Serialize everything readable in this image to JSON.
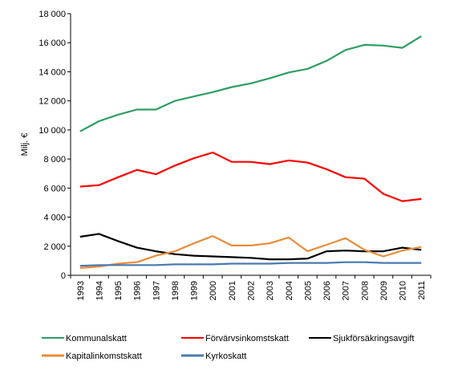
{
  "chart_data": {
    "type": "line",
    "ylabel": "Milj. €",
    "ylim": [
      0,
      18000
    ],
    "yticks": [
      0,
      2000,
      4000,
      6000,
      8000,
      10000,
      12000,
      14000,
      16000,
      18000
    ],
    "ytick_labels": [
      "0",
      "2 000",
      "4 000",
      "6 000",
      "8 000",
      "10 000",
      "12 000",
      "14 000",
      "16 000",
      "18 000"
    ],
    "categories": [
      "1993",
      "1994",
      "1995",
      "1996",
      "1997",
      "1998",
      "1999",
      "2000",
      "2001",
      "2002",
      "2003",
      "2004",
      "2005",
      "2006",
      "2007",
      "2008",
      "2009",
      "2010",
      "2011"
    ],
    "grid": false,
    "legend_position": "bottom",
    "series": [
      {
        "name": "Kommunalskatt",
        "color": "#2e9e62",
        "values": [
          9900,
          10600,
          11050,
          11400,
          11400,
          12000,
          12300,
          12600,
          12950,
          13200,
          13550,
          13950,
          14200,
          14750,
          15500,
          15850,
          15800,
          15650,
          16450
        ]
      },
      {
        "name": "Förvärvsinkomstskatt",
        "color": "#ff0000",
        "values": [
          6100,
          6200,
          6750,
          7250,
          6950,
          7550,
          8050,
          8450,
          7800,
          7800,
          7650,
          7900,
          7750,
          7300,
          6750,
          6650,
          5600,
          5100,
          5250
        ]
      },
      {
        "name": "Sjukförsäkringsavgift",
        "color": "#000000",
        "values": [
          2650,
          2850,
          2350,
          1900,
          1650,
          1450,
          1350,
          1300,
          1250,
          1200,
          1100,
          1100,
          1150,
          1650,
          1700,
          1650,
          1650,
          1900,
          1750
        ]
      },
      {
        "name": "Kapitalinkomstskatt",
        "color": "#e98c3a",
        "values": [
          500,
          600,
          800,
          900,
          1350,
          1650,
          2200,
          2700,
          2050,
          2050,
          2200,
          2600,
          1650,
          2100,
          2550,
          1750,
          1300,
          1700,
          1950
        ]
      },
      {
        "name": "Kyrkoskatt",
        "color": "#4a7aaf",
        "values": [
          650,
          700,
          700,
          700,
          700,
          750,
          750,
          750,
          800,
          800,
          800,
          850,
          850,
          850,
          900,
          900,
          850,
          850,
          850
        ]
      }
    ]
  }
}
